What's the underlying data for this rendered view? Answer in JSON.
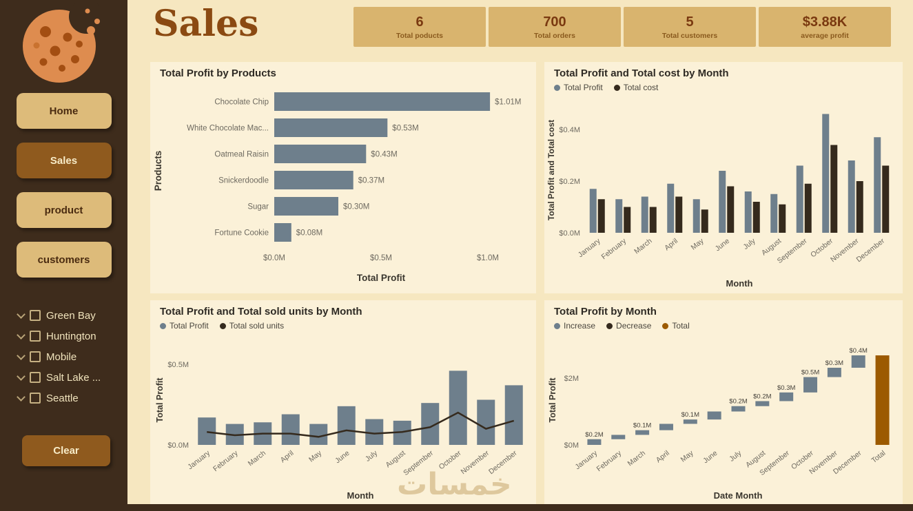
{
  "page": {
    "title": "Sales",
    "watermark": "خمسات"
  },
  "sidebar": {
    "nav": [
      {
        "label": "Home",
        "active": false
      },
      {
        "label": "Sales",
        "active": true
      },
      {
        "label": "product",
        "active": false
      },
      {
        "label": "customers",
        "active": false
      }
    ],
    "slicer": {
      "items": [
        {
          "label": "Green Bay",
          "checked": false
        },
        {
          "label": "Huntington",
          "checked": false
        },
        {
          "label": "Mobile",
          "checked": false
        },
        {
          "label": "Salt Lake ...",
          "checked": false
        },
        {
          "label": "Seattle",
          "checked": false
        }
      ]
    },
    "clear_label": "Clear"
  },
  "kpis": [
    {
      "value": "6",
      "label": "Total poducts"
    },
    {
      "value": "700",
      "label": "Total orders"
    },
    {
      "value": "5",
      "label": "Total customers"
    },
    {
      "value": "$3.88K",
      "label": "average profit"
    }
  ],
  "colors": {
    "bar_primary": "#6E7F8C",
    "bar_dark": "#352A1D",
    "total_brown": "#9C5A00",
    "sidebar_bg": "#3E2C1C",
    "page_bg": "#F6E7C0",
    "panel_bg": "#FBF1D8",
    "accent_tan": "#DDBB7A",
    "accent_brown": "#8F5A1E",
    "title_brown": "#8B4A12"
  },
  "chart_data": [
    {
      "id": "profit_by_products",
      "type": "bar",
      "orientation": "horizontal",
      "title": "Total Profit by Products",
      "categories": [
        "Chocolate Chip",
        "White Chocolate Mac...",
        "Oatmeal Raisin",
        "Snickerdoodle",
        "Sugar",
        "Fortune Cookie"
      ],
      "values": [
        1.01,
        0.53,
        0.43,
        0.37,
        0.3,
        0.08
      ],
      "data_labels": [
        "$1.01M",
        "$0.53M",
        "$0.43M",
        "$0.37M",
        "$0.30M",
        "$0.08M"
      ],
      "xlabel": "Total Profit",
      "ylabel": "Products",
      "x_ticks": [
        "$0.0M",
        "$0.5M",
        "$1.0M"
      ],
      "xlim": [
        0,
        1.1
      ],
      "color": "#6E7F8C"
    },
    {
      "id": "profit_and_cost_by_month",
      "type": "bar",
      "title": "Total Profit and Total cost by Month",
      "categories": [
        "January",
        "February",
        "March",
        "April",
        "May",
        "June",
        "July",
        "August",
        "September",
        "October",
        "November",
        "December"
      ],
      "series": [
        {
          "name": "Total Profit",
          "color": "#6E7F8C",
          "values": [
            0.17,
            0.13,
            0.14,
            0.19,
            0.13,
            0.24,
            0.16,
            0.15,
            0.26,
            0.46,
            0.28,
            0.37
          ]
        },
        {
          "name": "Total cost",
          "color": "#352A1D",
          "values": [
            0.13,
            0.1,
            0.1,
            0.14,
            0.09,
            0.18,
            0.12,
            0.11,
            0.19,
            0.34,
            0.2,
            0.26
          ]
        }
      ],
      "xlabel": "Month",
      "ylabel": "Total Profit and Total cost",
      "y_ticks": [
        "$0.0M",
        "$0.2M",
        "$0.4M"
      ],
      "y_tick_vals": [
        0,
        0.2,
        0.4
      ],
      "ylim": [
        0,
        0.48
      ],
      "legend_position": "top"
    },
    {
      "id": "profit_and_sold_units_by_month",
      "type": "combo",
      "title": "Total Profit and Total sold units by Month",
      "categories": [
        "January",
        "February",
        "March",
        "April",
        "May",
        "June",
        "July",
        "August",
        "September",
        "October",
        "November",
        "December"
      ],
      "bar_series": {
        "name": "Total Profit",
        "color": "#6E7F8C",
        "values": [
          0.17,
          0.13,
          0.14,
          0.19,
          0.13,
          0.24,
          0.16,
          0.15,
          0.26,
          0.46,
          0.28,
          0.37
        ]
      },
      "line_series": {
        "name": "Total sold units",
        "color": "#352A1D",
        "values": [
          0.08,
          0.06,
          0.07,
          0.07,
          0.05,
          0.09,
          0.07,
          0.08,
          0.11,
          0.2,
          0.1,
          0.15
        ]
      },
      "xlabel": "Month",
      "ylabel": "Total Profit",
      "y_ticks": [
        "$0.0M",
        "$0.5M"
      ],
      "y_tick_vals": [
        0,
        0.5
      ],
      "ylim": [
        0,
        0.52
      ],
      "legend_position": "top"
    },
    {
      "id": "profit_waterfall_by_month",
      "type": "waterfall",
      "title": "Total Profit by Month",
      "categories": [
        "January",
        "February",
        "March",
        "April",
        "May",
        "June",
        "July",
        "August",
        "September",
        "October",
        "November",
        "December",
        "Total"
      ],
      "increments": [
        0.17,
        0.13,
        0.14,
        0.19,
        0.13,
        0.24,
        0.16,
        0.15,
        0.26,
        0.46,
        0.28,
        0.37
      ],
      "total": 2.68,
      "step_labels": [
        "$0.2M",
        null,
        "$0.1M",
        null,
        "$0.1M",
        null,
        "$0.2M",
        "$0.2M",
        "$0.3M",
        "$0.5M",
        "$0.3M",
        "$0.4M"
      ],
      "legend": [
        {
          "name": "Increase",
          "color": "#6E7F8C"
        },
        {
          "name": "Decrease",
          "color": "#352A1D"
        },
        {
          "name": "Total",
          "color": "#9C5A00"
        }
      ],
      "xlabel": "Date Month",
      "ylabel": "Total Profit",
      "y_ticks": [
        "$0M",
        "$2M"
      ],
      "y_tick_vals": [
        0,
        2
      ],
      "ylim": [
        0,
        2.9
      ],
      "legend_position": "top"
    }
  ]
}
